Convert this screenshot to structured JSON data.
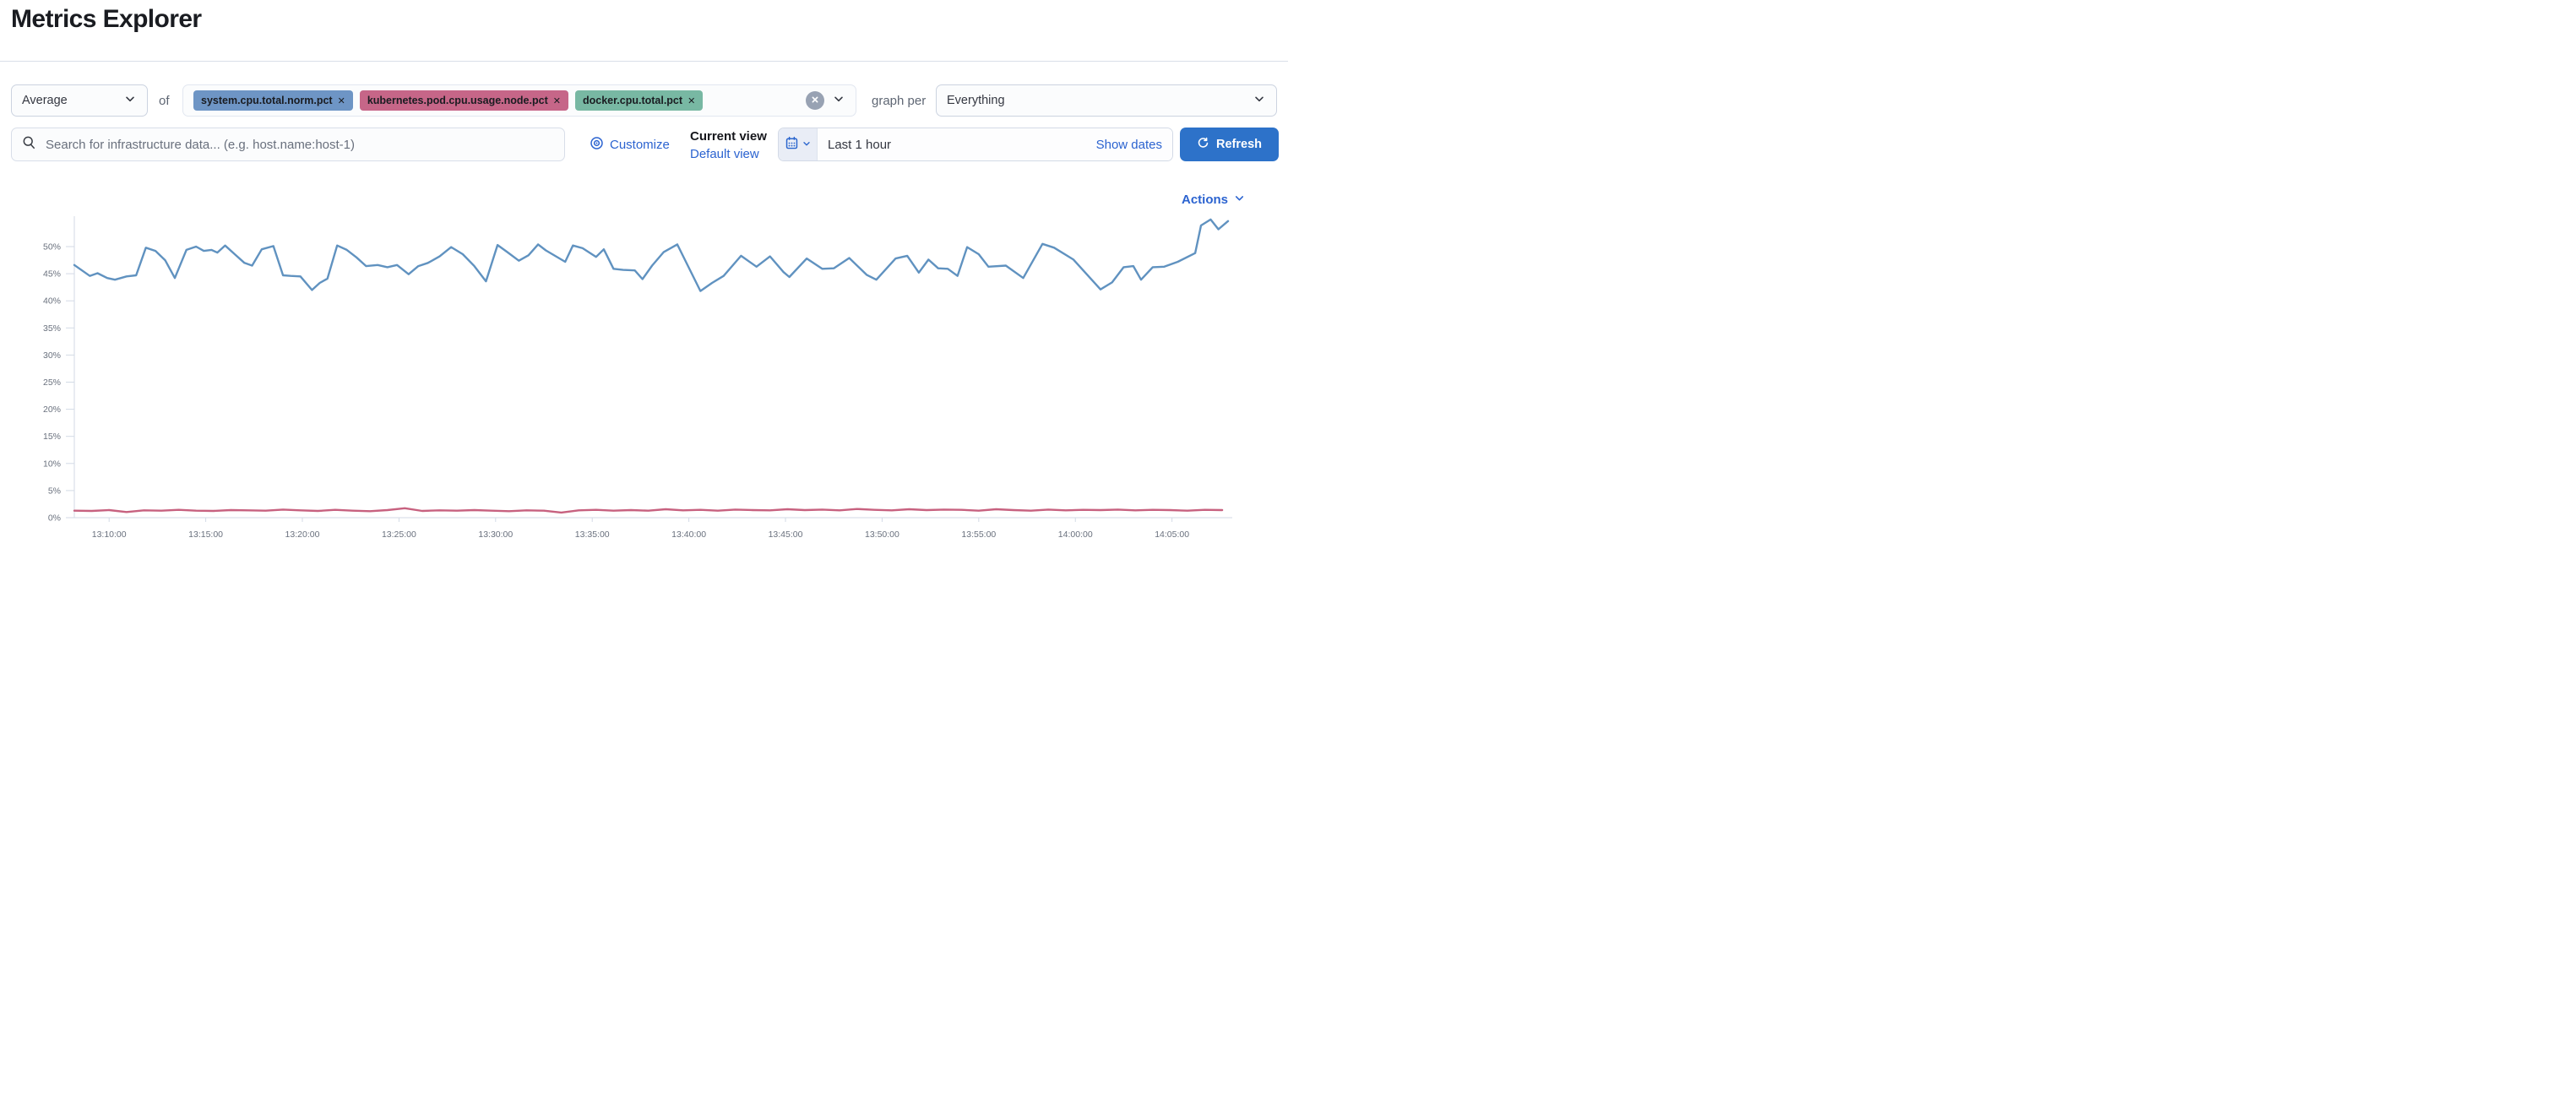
{
  "page": {
    "title": "Metrics Explorer"
  },
  "toolbar": {
    "aggregation": {
      "value": "Average"
    },
    "of_label": "of",
    "metrics": [
      {
        "label": "system.cpu.total.norm.pct",
        "color": "#6e95c5"
      },
      {
        "label": "kubernetes.pod.cpu.usage.node.pct",
        "color": "#c66688"
      },
      {
        "label": "docker.cpu.total.pct",
        "color": "#78b8a3"
      }
    ],
    "remove_glyph": "✕",
    "graph_per_label": "graph per",
    "group_by": {
      "value": "Everything"
    }
  },
  "search": {
    "placeholder": "Search for infrastructure data... (e.g. host.name:host-1)"
  },
  "view_controls": {
    "customize_label": "Customize",
    "current_view_label": "Current view",
    "default_view_label": "Default view"
  },
  "time_picker": {
    "range_label": "Last 1 hour",
    "show_dates_label": "Show dates",
    "refresh_label": "Refresh"
  },
  "actions": {
    "label": "Actions"
  },
  "colors": {
    "accent_link": "#2b63d0",
    "refresh_button": "#2d72c9",
    "axis": "#d3dae6",
    "tick_label": "#69707d",
    "clear_button": "#98a2b3"
  },
  "icons": [
    "chevron-down-icon",
    "close-circle-icon",
    "search-icon",
    "bullseye-icon",
    "calendar-icon",
    "refresh-icon",
    "remove-tag-icon"
  ],
  "chart_data": {
    "type": "line",
    "title": "",
    "xlabel": "",
    "ylabel": "",
    "grid": false,
    "legend": "none",
    "x_range_minutes": [
      0,
      59.7
    ],
    "x_start_time": "13:08:10",
    "ylim": [
      0,
      55
    ],
    "y_ticks": [
      {
        "v": 0,
        "label": "0%"
      },
      {
        "v": 5,
        "label": "5%"
      },
      {
        "v": 10,
        "label": "10%"
      },
      {
        "v": 15,
        "label": "15%"
      },
      {
        "v": 20,
        "label": "20%"
      },
      {
        "v": 25,
        "label": "25%"
      },
      {
        "v": 30,
        "label": "30%"
      },
      {
        "v": 35,
        "label": "35%"
      },
      {
        "v": 40,
        "label": "40%"
      },
      {
        "v": 45,
        "label": "45%"
      },
      {
        "v": 50,
        "label": "50%"
      }
    ],
    "x_ticks": [
      {
        "t": 1.8,
        "label": "13:10:00"
      },
      {
        "t": 6.8,
        "label": "13:15:00"
      },
      {
        "t": 11.8,
        "label": "13:20:00"
      },
      {
        "t": 16.8,
        "label": "13:25:00"
      },
      {
        "t": 21.8,
        "label": "13:30:00"
      },
      {
        "t": 26.8,
        "label": "13:35:00"
      },
      {
        "t": 31.8,
        "label": "13:40:00"
      },
      {
        "t": 36.8,
        "label": "13:45:00"
      },
      {
        "t": 41.8,
        "label": "13:50:00"
      },
      {
        "t": 46.8,
        "label": "13:55:00"
      },
      {
        "t": 51.8,
        "label": "14:00:00"
      },
      {
        "t": 56.8,
        "label": "14:05:00"
      }
    ],
    "series": [
      {
        "name": "average of system.cpu.total.norm.pct",
        "color": "#6092c0",
        "points": [
          [
            0,
            46.6
          ],
          [
            0.8,
            44.6
          ],
          [
            1.2,
            45.1
          ],
          [
            1.7,
            44.2
          ],
          [
            2.1,
            43.9
          ],
          [
            2.7,
            44.5
          ],
          [
            3.2,
            44.7
          ],
          [
            3.7,
            49.8
          ],
          [
            4.2,
            49.2
          ],
          [
            4.7,
            47.5
          ],
          [
            5.2,
            44.2
          ],
          [
            5.8,
            49.4
          ],
          [
            6.3,
            50
          ],
          [
            6.7,
            49.2
          ],
          [
            7.1,
            49.4
          ],
          [
            7.4,
            48.9
          ],
          [
            7.8,
            50.2
          ],
          [
            8.3,
            48.6
          ],
          [
            8.8,
            47
          ],
          [
            9.2,
            46.5
          ],
          [
            9.7,
            49.5
          ],
          [
            10.3,
            50.1
          ],
          [
            10.8,
            44.7
          ],
          [
            11.2,
            44.6
          ],
          [
            11.7,
            44.5
          ],
          [
            12.3,
            42
          ],
          [
            12.7,
            43.3
          ],
          [
            13.1,
            44.1
          ],
          [
            13.6,
            50.2
          ],
          [
            14.1,
            49.4
          ],
          [
            14.6,
            48
          ],
          [
            15.1,
            46.4
          ],
          [
            15.7,
            46.6
          ],
          [
            16.2,
            46.2
          ],
          [
            16.7,
            46.6
          ],
          [
            17.3,
            44.9
          ],
          [
            17.8,
            46.4
          ],
          [
            18.3,
            47
          ],
          [
            18.9,
            48.2
          ],
          [
            19.5,
            49.9
          ],
          [
            20.1,
            48.6
          ],
          [
            20.7,
            46.4
          ],
          [
            21.3,
            43.6
          ],
          [
            21.9,
            50.3
          ],
          [
            22.4,
            49
          ],
          [
            23,
            47.4
          ],
          [
            23.5,
            48.4
          ],
          [
            24,
            50.4
          ],
          [
            24.4,
            49.3
          ],
          [
            25.4,
            47.2
          ],
          [
            25.8,
            50.2
          ],
          [
            26.3,
            49.7
          ],
          [
            27,
            48.1
          ],
          [
            27.4,
            49.5
          ],
          [
            27.9,
            45.9
          ],
          [
            28.4,
            45.7
          ],
          [
            29,
            45.6
          ],
          [
            29.4,
            44
          ],
          [
            29.9,
            46.5
          ],
          [
            30.5,
            49
          ],
          [
            31.2,
            50.4
          ],
          [
            32.4,
            41.8
          ],
          [
            33,
            43.3
          ],
          [
            33.6,
            44.6
          ],
          [
            34.5,
            48.3
          ],
          [
            35.3,
            46.3
          ],
          [
            36,
            48.2
          ],
          [
            36.7,
            45.3
          ],
          [
            37,
            44.4
          ],
          [
            37.9,
            47.8
          ],
          [
            38.7,
            45.9
          ],
          [
            39.3,
            46
          ],
          [
            40.1,
            47.9
          ],
          [
            41,
            44.8
          ],
          [
            41.5,
            43.9
          ],
          [
            42.5,
            47.8
          ],
          [
            43.1,
            48.3
          ],
          [
            43.7,
            45.2
          ],
          [
            44.2,
            47.6
          ],
          [
            44.7,
            46
          ],
          [
            45.2,
            45.9
          ],
          [
            45.7,
            44.6
          ],
          [
            46.2,
            49.9
          ],
          [
            46.8,
            48.6
          ],
          [
            47.3,
            46.3
          ],
          [
            48.2,
            46.5
          ],
          [
            49.1,
            44.2
          ],
          [
            50.1,
            50.5
          ],
          [
            50.7,
            49.8
          ],
          [
            51.7,
            47.6
          ],
          [
            53.1,
            42.1
          ],
          [
            53.7,
            43.4
          ],
          [
            54.3,
            46.2
          ],
          [
            54.8,
            46.4
          ],
          [
            55.2,
            43.9
          ],
          [
            55.8,
            46.2
          ],
          [
            56.4,
            46.3
          ],
          [
            57.1,
            47.2
          ],
          [
            58,
            48.8
          ],
          [
            58.3,
            53.9
          ],
          [
            58.8,
            55
          ],
          [
            59.2,
            53.2
          ],
          [
            59.7,
            54.7
          ]
        ]
      },
      {
        "name": "average of kubernetes.pod.cpu.usage.node.pct",
        "color": "#c7617f",
        "t_step": 0.9,
        "values": [
          1.3,
          1.25,
          1.4,
          1.05,
          1.35,
          1.3,
          1.45,
          1.3,
          1.25,
          1.4,
          1.35,
          1.3,
          1.5,
          1.35,
          1.25,
          1.45,
          1.3,
          1.2,
          1.4,
          1.75,
          1.25,
          1.35,
          1.3,
          1.4,
          1.3,
          1.2,
          1.35,
          1.3,
          0.95,
          1.35,
          1.45,
          1.3,
          1.4,
          1.3,
          1.55,
          1.35,
          1.45,
          1.3,
          1.5,
          1.4,
          1.35,
          1.55,
          1.4,
          1.5,
          1.35,
          1.6,
          1.45,
          1.35,
          1.55,
          1.4,
          1.5,
          1.45,
          1.3,
          1.55,
          1.4,
          1.3,
          1.5,
          1.35,
          1.45,
          1.4,
          1.5,
          1.35,
          1.45,
          1.4,
          1.3,
          1.45,
          1.4
        ]
      }
    ]
  }
}
